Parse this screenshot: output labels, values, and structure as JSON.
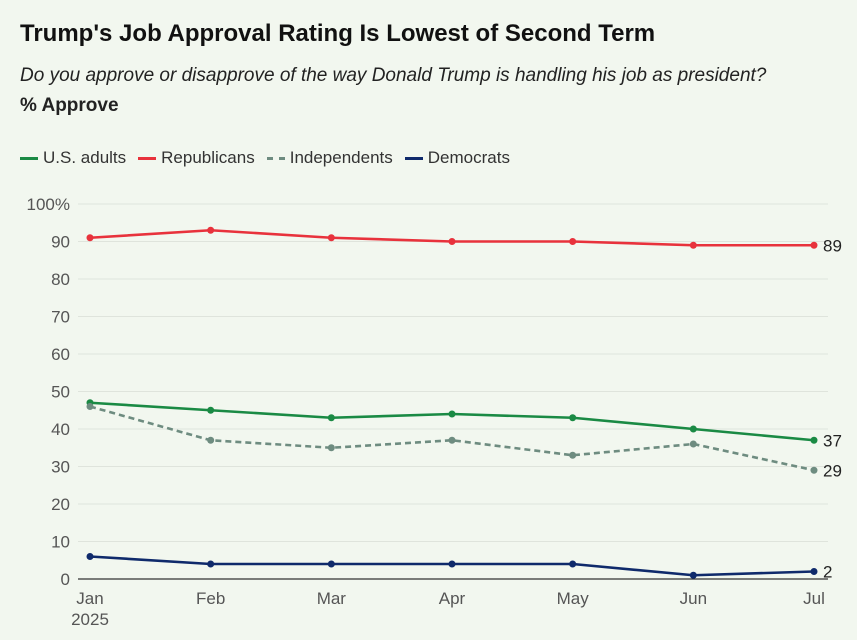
{
  "title": "Trump's Job Approval Rating Is Lowest of Second Term",
  "subtitle": "Do you approve or disapprove of the way Donald Trump is handling his job as president?",
  "measure": "% Approve",
  "chart_data": {
    "type": "line",
    "categories": [
      "Jan",
      "Feb",
      "Mar",
      "Apr",
      "May",
      "Jun",
      "Jul"
    ],
    "x_sublabel": "2025",
    "ylim": [
      0,
      100
    ],
    "y_ticks": [
      "0",
      "10",
      "20",
      "30",
      "40",
      "50",
      "60",
      "70",
      "80",
      "90",
      "100%"
    ],
    "grid": true,
    "legend_position": "top-left",
    "series": [
      {
        "name": "U.S. adults",
        "color": "#1a8a44",
        "dashed": false,
        "values": [
          47,
          45,
          43,
          44,
          43,
          40,
          37
        ],
        "end_label": "37"
      },
      {
        "name": "Republicans",
        "color": "#e8323c",
        "dashed": false,
        "values": [
          91,
          93,
          91,
          90,
          90,
          89,
          89
        ],
        "end_label": "89"
      },
      {
        "name": "Independents",
        "color": "#6e8c80",
        "dashed": true,
        "values": [
          46,
          37,
          35,
          37,
          33,
          36,
          29
        ],
        "end_label": "29"
      },
      {
        "name": "Democrats",
        "color": "#0f2a6b",
        "dashed": false,
        "values": [
          6,
          4,
          4,
          4,
          4,
          1,
          2
        ],
        "end_label": "2"
      }
    ]
  }
}
